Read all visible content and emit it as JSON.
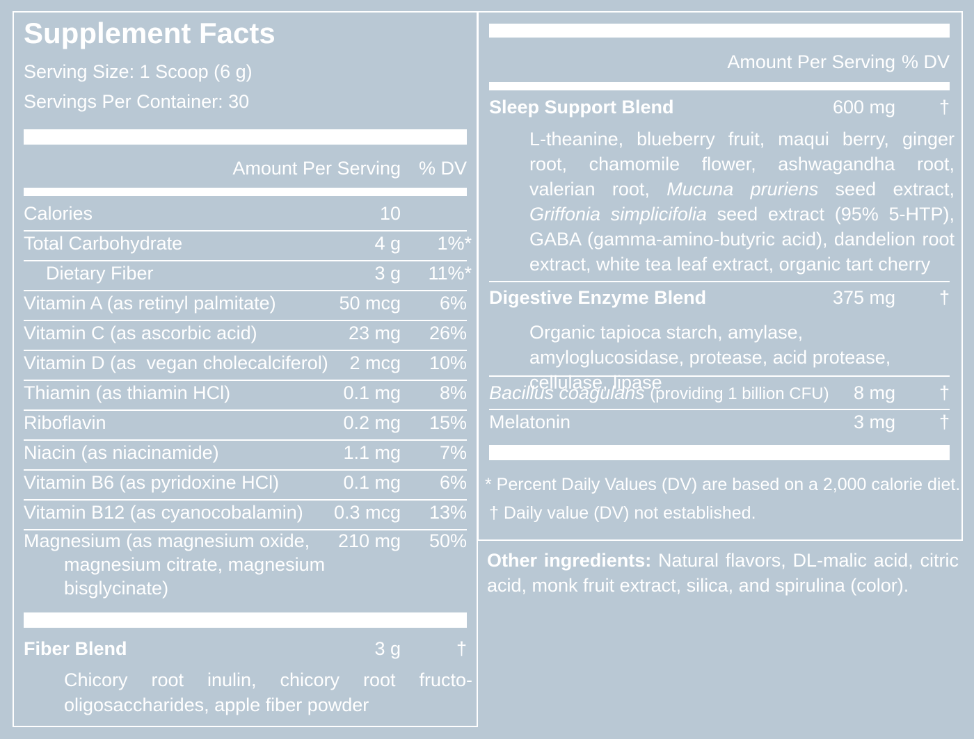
{
  "label": {
    "title": "Supplement Facts",
    "serving_size": "Serving Size: 1 Scoop (6 g)",
    "servings_per_container": "Servings Per Container: 30"
  },
  "left_table": {
    "header": {
      "amount": "Amount Per Serving",
      "dv": "% DV"
    },
    "rows": [
      {
        "name": "Calories",
        "desc": "",
        "amount": "10",
        "dv": ""
      },
      {
        "name": "Total Carbohydrate",
        "desc": "",
        "amount": "4 g",
        "dv": "1%*"
      },
      {
        "name": "Dietary Fiber",
        "desc": "",
        "amount": "3 g",
        "dv": "11%*"
      },
      {
        "name": "Vitamin A",
        "desc": " (as retinyl palmitate)",
        "amount": "50 mcg",
        "dv": "6%"
      },
      {
        "name": "Vitamin C",
        "desc": " (as ascorbic acid)",
        "amount": "23 mg",
        "dv": "26%"
      },
      {
        "name": "Vitamin D",
        "desc": " (as  vegan cholecalciferol)",
        "amount": "2 mcg",
        "dv": "10%"
      },
      {
        "name": "Thiamin",
        "desc": " (as thiamin HCl)",
        "amount": "0.1 mg",
        "dv": "8%"
      },
      {
        "name": "Riboflavin",
        "desc": "",
        "amount": "0.2 mg",
        "dv": "15%"
      },
      {
        "name": "Niacin",
        "desc": " (as niacinamide)",
        "amount": "1.1 mg",
        "dv": "7%"
      },
      {
        "name": "Vitamin B6",
        "desc": " (as pyridoxine HCl)",
        "amount": "0.1 mg",
        "dv": "6%"
      },
      {
        "name": "Vitamin B12",
        "desc": " (as cyanocobalamin)",
        "amount": "0.3 mcg",
        "dv": "13%"
      }
    ],
    "magnesium": {
      "line1": "Magnesium (as magnesium oxide,",
      "line2": "magnesium citrate, magnesium",
      "line3": "bisglycinate)",
      "amount": "210 mg",
      "dv": "50%"
    },
    "fiber_blend": {
      "name": "Fiber Blend",
      "amount": "3 g",
      "dv": "†",
      "ingredients": "Chicory root inulin, chicory root fructo-oligosaccharides, apple fiber powder"
    }
  },
  "right_table": {
    "header": {
      "amount": "Amount Per Serving",
      "dv": "% DV"
    },
    "sleep": {
      "name": "Sleep Support Blend",
      "amount": "600 mg",
      "dv": "†",
      "ing_a": "L-theanine, blueberry fruit, maqui berry, ginger root, chamomile flower, ashwagandha root, valerian root, ",
      "ing_b": "Mucuna pruriens",
      "ing_c": " seed extract, ",
      "ing_d": "Griffonia simplicifolia",
      "ing_e": " seed extract (95% 5-HTP), GABA (gamma-amino-butyric acid), dandelion root extract, white tea leaf extract, organic tart cherry"
    },
    "digestive": {
      "name": "Digestive Enzyme Blend",
      "amount": "375 mg",
      "dv": "†",
      "ingredients": "Organic tapioca starch, amylase, amyloglucosidase, protease, acid protease, cellulase, lipase"
    },
    "bacillus": {
      "name": "Bacillus coagulans",
      "desc": "(providing 1 billion CFU)",
      "amount": "8 mg",
      "dv": "†"
    },
    "melatonin": {
      "name": "Melatonin",
      "amount": "3 mg",
      "dv": "†"
    }
  },
  "footnotes": {
    "percent_dv": "* Percent Daily Values (DV) are based on a 2,000 calorie diet.",
    "dagger": "† Daily value (DV) not established."
  },
  "other": {
    "label": "Other ingredients:",
    "text": " Natural flavors, DL-malic acid, citric acid, monk fruit extract, silica, and spirulina (color)."
  }
}
